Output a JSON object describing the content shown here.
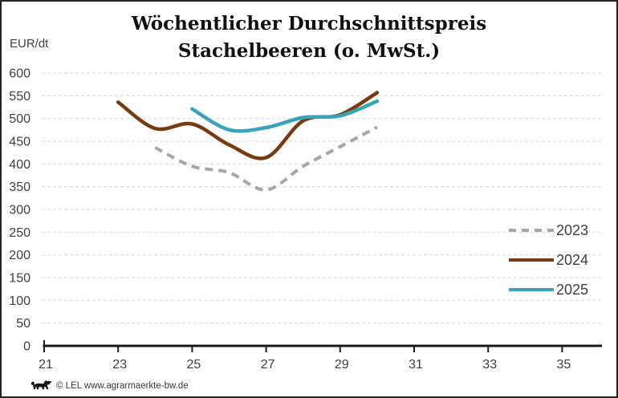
{
  "title": {
    "line1": "Wöchentlicher Durchschnittspreis",
    "line2": "Stachelbeeren (o. MwSt.)"
  },
  "y_axis_unit": "EUR/dt",
  "footer": {
    "text": "© LEL www.agrarmaerkte-bw.de"
  },
  "chart_data": {
    "type": "line",
    "title": "Wöchentlicher Durchschnittspreis Stachelbeeren (o. MwSt.)",
    "ylabel": "EUR/dt",
    "xlabel": "",
    "ylim": [
      0,
      600
    ],
    "y_tick_step": 50,
    "x_range": [
      21,
      36
    ],
    "x_ticks": [
      21,
      23,
      25,
      27,
      29,
      31,
      33,
      35
    ],
    "grid": true,
    "legend_position": "right-middle",
    "series": [
      {
        "name": "2023",
        "style": "dashed",
        "color": "#A6A6A6",
        "x": [
          24,
          25,
          26,
          27,
          28,
          29,
          30
        ],
        "values": [
          436,
          395,
          381,
          343,
          395,
          438,
          481
        ]
      },
      {
        "name": "2024",
        "style": "solid",
        "color": "#7A3A10",
        "x": [
          23,
          24,
          25,
          26,
          27,
          28,
          29,
          30
        ],
        "values": [
          536,
          478,
          488,
          442,
          414,
          495,
          508,
          557
        ]
      },
      {
        "name": "2025",
        "style": "solid",
        "color": "#38A4B8",
        "x": [
          25,
          26,
          27,
          28,
          29,
          30
        ],
        "values": [
          521,
          475,
          480,
          502,
          506,
          538
        ]
      }
    ],
    "colors": {
      "grid": "#D9D9D9",
      "axis": "#1A1A1A",
      "tick_text": "#3F3F3F"
    }
  }
}
